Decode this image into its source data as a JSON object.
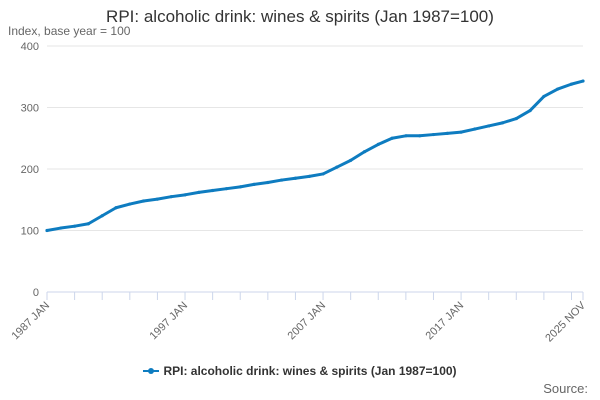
{
  "title": "RPI: alcoholic drink: wines & spirits (Jan 1987=100)",
  "subtitle": "Index, base year = 100",
  "source": "Source:",
  "colors": {
    "series": "#0e7cc0",
    "grid": "#e6e6e6",
    "axis": "#ccd6eb",
    "tick_text": "#666666"
  },
  "chart_data": {
    "type": "line",
    "ylim": [
      0,
      400
    ],
    "y_ticks": [
      0,
      100,
      200,
      300,
      400
    ],
    "x_ticks": [
      "1987 JAN",
      "1997 JAN",
      "2007 JAN",
      "2017 JAN",
      "2025 NOV"
    ],
    "xlim": [
      "1987 JAN",
      "2025 NOV"
    ],
    "legend_position": "bottom-center",
    "grid": true,
    "series": [
      {
        "name": "RPI: alcoholic drink: wines & spirits (Jan 1987=100)",
        "points": [
          [
            "1987 JAN",
            100
          ],
          [
            "1988 JAN",
            104
          ],
          [
            "1989 JAN",
            107
          ],
          [
            "1990 JAN",
            111
          ],
          [
            "1991 JAN",
            124
          ],
          [
            "1992 JAN",
            137
          ],
          [
            "1993 JAN",
            143
          ],
          [
            "1994 JAN",
            148
          ],
          [
            "1995 JAN",
            151
          ],
          [
            "1996 JAN",
            155
          ],
          [
            "1997 JAN",
            158
          ],
          [
            "1998 JAN",
            162
          ],
          [
            "1999 JAN",
            165
          ],
          [
            "2000 JAN",
            168
          ],
          [
            "2001 JAN",
            171
          ],
          [
            "2002 JAN",
            175
          ],
          [
            "2003 JAN",
            178
          ],
          [
            "2004 JAN",
            182
          ],
          [
            "2005 JAN",
            185
          ],
          [
            "2006 JAN",
            188
          ],
          [
            "2007 JAN",
            192
          ],
          [
            "2008 JAN",
            203
          ],
          [
            "2009 JAN",
            214
          ],
          [
            "2010 JAN",
            228
          ],
          [
            "2011 JAN",
            240
          ],
          [
            "2012 JAN",
            250
          ],
          [
            "2013 JAN",
            254
          ],
          [
            "2014 JAN",
            254
          ],
          [
            "2015 JAN",
            256
          ],
          [
            "2016 JAN",
            258
          ],
          [
            "2017 JAN",
            260
          ],
          [
            "2018 JAN",
            265
          ],
          [
            "2019 JAN",
            270
          ],
          [
            "2020 JAN",
            275
          ],
          [
            "2021 JAN",
            282
          ],
          [
            "2022 JAN",
            295
          ],
          [
            "2023 JAN",
            318
          ],
          [
            "2024 JAN",
            330
          ],
          [
            "2025 JAN",
            338
          ],
          [
            "2025 NOV",
            343
          ]
        ]
      }
    ]
  }
}
